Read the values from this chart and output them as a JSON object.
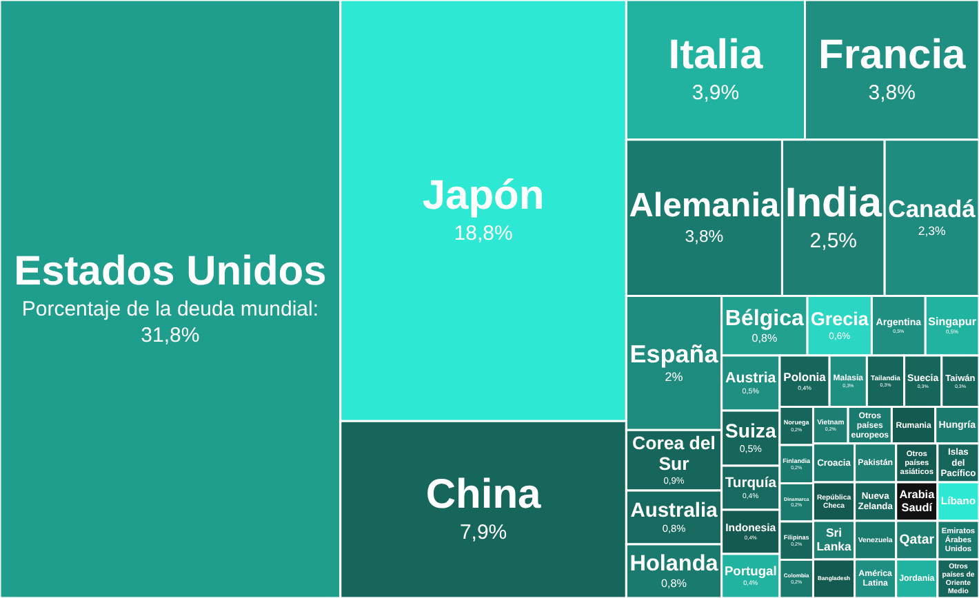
{
  "chart_data": {
    "type": "other",
    "categories": [
      "Estados Unidos",
      "Japón",
      "China",
      "Italia",
      "Francia",
      "Alemania",
      "India",
      "Canadá",
      "España",
      "Corea del Sur",
      "Australia",
      "Holanda",
      "Bélgica",
      "Grecia",
      "Argentina",
      "Singapur",
      "Austria",
      "Suiza",
      "Turquía",
      "Indonesia",
      "Portugal",
      "Polonia",
      "Malasia",
      "Tailandia",
      "Suecia",
      "Taiwán",
      "Noruega",
      "Finlandia",
      "Dinamarca",
      "Filipinas",
      "Colombia",
      "Vietnam",
      "Otros países europeos",
      "Rumania",
      "Hungría",
      "Croacia",
      "República Checa",
      "Sri Lanka",
      "Bangladesh",
      "Pakistán",
      "Otros países asiáticos",
      "Islas del Pacífico",
      "Nueva Zelanda",
      "Venezuela",
      "América Latina",
      "Arabia Saudí",
      "Líbano",
      "Qatar",
      "Jordania",
      "Emiratos Árabes Unidos",
      "Otros países de Oriente Medio"
    ],
    "values": [
      31.8,
      18.8,
      7.9,
      3.9,
      3.8,
      3.8,
      2.5,
      2.3,
      2,
      0.9,
      0.8,
      0.8,
      0.8,
      0.6,
      0.5,
      0.5,
      0.5,
      0.5,
      0.4,
      0.4,
      0.4,
      0.4,
      0.3,
      0.3,
      0.3,
      0.3,
      0.2,
      0.2,
      0.2,
      0.2,
      0.2,
      0.2,
      null,
      null,
      null,
      null,
      null,
      null,
      null,
      null,
      null,
      null,
      null,
      null,
      null,
      null,
      null,
      null,
      null,
      null,
      null
    ],
    "value_labels": [
      "Porcentaje de la deuda mundial: 31,8%",
      "18,8%",
      "7,9%",
      "3,9%",
      "3,8%",
      "3,8%",
      "2,5%",
      "2,3%",
      "2%",
      "0,9%",
      "0,8%",
      "0,8%",
      "0,8%",
      "0,6%",
      "0,5%",
      "0,5%",
      "0,5%",
      "0,5%",
      "0,4%",
      "0,4%",
      "0,4%",
      "0,4%",
      "0,3%",
      "0,3%",
      "0,3%",
      "0,3%",
      "0,2%",
      "0,2%",
      "0,2%",
      "0,2%",
      "0,2%",
      "0,2%",
      null,
      null,
      null,
      null,
      null,
      null,
      null,
      null,
      null,
      null,
      null,
      null,
      null,
      null,
      null,
      null,
      null,
      null,
      null
    ],
    "colors": [
      "#1f9e8e",
      "#2de8d2",
      "#17665c",
      "#22b3a0",
      "#1f8f82",
      "#1b7a6e",
      "#1e7e72",
      "#1f8a7e",
      "#1f8a7e",
      "#17665c",
      "#186a60",
      "#1b7a6e",
      "#22a090",
      "#2bd6c2",
      "#1f8f82",
      "#22b3a0",
      "#1f8f82",
      "#17665c",
      "#186a60",
      "#155a50",
      "#22b3a0",
      "#17665c",
      "#1f8f82",
      "#17665c",
      "#17665c",
      "#17665c",
      "#17665c",
      "#1b7a6e",
      "#1b7a6e",
      "#17665c",
      "#1b7a6e",
      "#1e7e72",
      "#1b7a6e",
      "#155a50",
      "#1b7a6e",
      "#1b7a6e",
      "#155a50",
      "#1e7e72",
      "#155a50",
      "#1e7e72",
      "#155a50",
      "#17665c",
      "#17665c",
      "#1b7a6e",
      "#1f8f82",
      "#111111",
      "#2de8d2",
      "#1e7e72",
      "#22b3a0",
      "#1b7a6e",
      "#17665c"
    ]
  }
}
